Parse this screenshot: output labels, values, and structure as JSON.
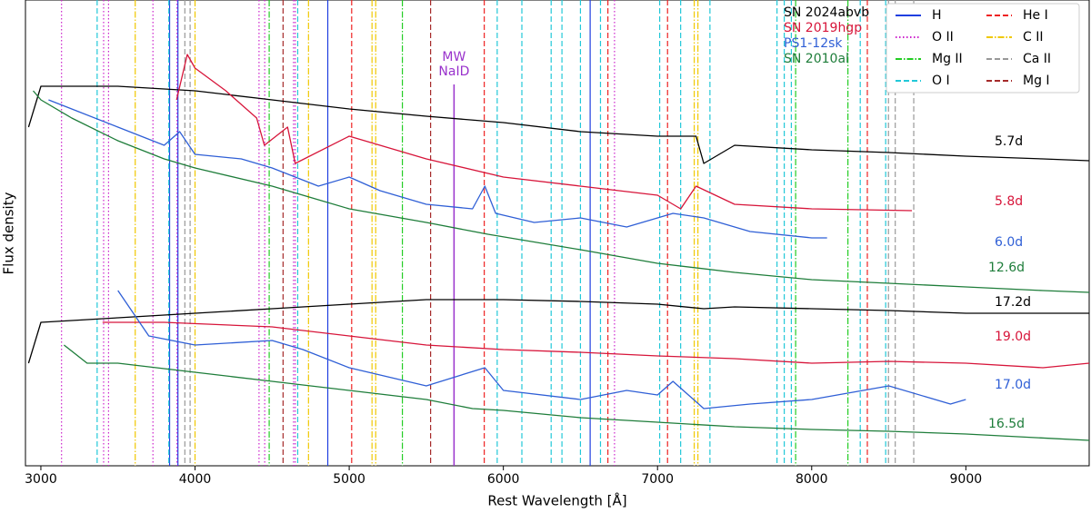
{
  "chart_data": {
    "type": "line",
    "x_label": "Rest Wavelength [Å]",
    "y_label": "Flux density",
    "xlim": [
      2900,
      9800
    ],
    "xticks": [
      3000,
      4000,
      5000,
      6000,
      7000,
      8000,
      9000
    ],
    "ylim": [
      0,
      513
    ],
    "objects": [
      {
        "name": "SN 2024abvb",
        "color": "#000000",
        "spectra": [
          {
            "label": "5.7d",
            "x": [
              2920,
              3000,
              3500,
              4000,
              4500,
              5000,
              5500,
              6000,
              6500,
              7000,
              7250,
              7300,
              7500,
              8000,
              8500,
              9000,
              9500,
              9800
            ],
            "values": [
              373,
              418,
              418,
              413,
              403,
              393,
              385,
              378,
              368,
              363,
              363,
              333,
              353,
              348,
              345,
              341,
              338,
              336
            ]
          },
          {
            "label": "17.2d",
            "x": [
              2920,
              3000,
              3500,
              4000,
              4500,
              5000,
              5500,
              6000,
              6500,
              7000,
              7300,
              7500,
              8000,
              8500,
              9000,
              9500,
              9800
            ],
            "values": [
              113,
              158,
              163,
              168,
              173,
              178,
              183,
              183,
              181,
              178,
              173,
              175,
              173,
              171,
              168,
              168,
              168
            ]
          }
        ]
      },
      {
        "name": "SN 2019hgp",
        "color": "#d7153a",
        "spectra": [
          {
            "label": "5.8d",
            "x": [
              3880,
              3950,
              4000,
              4200,
              4400,
              4450,
              4600,
              4650,
              5000,
              5500,
              6000,
              6500,
              7000,
              7150,
              7250,
              7500,
              8000,
              8650
            ],
            "values": [
              403,
              453,
              438,
              413,
              383,
              353,
              373,
              333,
              363,
              338,
              318,
              308,
              298,
              283,
              308,
              288,
              283,
              281
            ]
          },
          {
            "label": "19.0d",
            "x": [
              3400,
              3800,
              4500,
              5000,
              5500,
              6000,
              6500,
              7000,
              7500,
              8000,
              8500,
              9000,
              9500,
              9800
            ],
            "values": [
              158,
              158,
              153,
              143,
              133,
              128,
              125,
              121,
              118,
              113,
              115,
              113,
              108,
              113
            ]
          }
        ]
      },
      {
        "name": "PS1-12sk",
        "color": "#2f5fd6",
        "spectra": [
          {
            "label": "6.0d",
            "x": [
              3050,
              3200,
              3500,
              3800,
              3900,
              4000,
              4300,
              4500,
              4800,
              5000,
              5200,
              5500,
              5800,
              5880,
              5950,
              6200,
              6500,
              6800,
              7100,
              7300,
              7600,
              8000,
              8100
            ],
            "values": [
              403,
              393,
              373,
              353,
              368,
              343,
              338,
              328,
              308,
              318,
              303,
              288,
              283,
              308,
              278,
              268,
              273,
              263,
              278,
              273,
              258,
              251,
              251
            ]
          },
          {
            "label": "17.0d",
            "x": [
              3500,
              3700,
              4000,
              4500,
              4700,
              5000,
              5500,
              5880,
              6000,
              6500,
              6800,
              7000,
              7100,
              7300,
              7600,
              8000,
              8500,
              8900,
              9000
            ],
            "values": [
              193,
              143,
              133,
              138,
              128,
              108,
              88,
              108,
              83,
              73,
              83,
              78,
              93,
              63,
              68,
              73,
              88,
              68,
              73
            ]
          }
        ]
      },
      {
        "name": "SN 2010al",
        "color": "#1e7d3a",
        "spectra": [
          {
            "label": "12.6d",
            "x": [
              2950,
              3000,
              3200,
              3500,
              3800,
              4000,
              4500,
              4800,
              5000,
              5500,
              5900,
              6500,
              7000,
              7500,
              8000,
              8500,
              9000,
              9500,
              9800
            ],
            "values": [
              413,
              403,
              383,
              358,
              338,
              328,
              308,
              293,
              283,
              268,
              255,
              238,
              223,
              213,
              205,
              201,
              197,
              193,
              191
            ]
          },
          {
            "label": "16.5d",
            "x": [
              3150,
              3300,
              3500,
              4000,
              4500,
              5000,
              5500,
              5800,
              6000,
              6500,
              7000,
              7500,
              8000,
              8500,
              9000,
              9800
            ],
            "values": [
              133,
              113,
              113,
              103,
              93,
              83,
              73,
              63,
              61,
              53,
              48,
              43,
              40,
              38,
              35,
              28
            ]
          }
        ]
      }
    ],
    "line_ids": [
      {
        "name": "H",
        "color": "#1f3fe0",
        "style": "solid",
        "wavelengths": [
          3835,
          3889,
          4861,
          6563
        ]
      },
      {
        "name": "He I",
        "color": "#ee2222",
        "style": "dashed",
        "wavelengths": [
          5016,
          5876,
          6678,
          7065,
          8361
        ]
      },
      {
        "name": "O II",
        "color": "#cc22cc",
        "style": "dotted",
        "wavelengths": [
          3134,
          3407,
          3439,
          3727,
          3883,
          4415,
          4452,
          4639,
          4650,
          6721
        ]
      },
      {
        "name": "C II",
        "color": "#f0c800",
        "style": "dashdot",
        "wavelengths": [
          3612,
          4000,
          4736,
          5148,
          5172,
          7238,
          7262
        ]
      },
      {
        "name": "Mg II",
        "color": "#22cc22",
        "style": "dashdot",
        "wavelengths": [
          4481,
          5345,
          7896,
          8235
        ]
      },
      {
        "name": "Ca II",
        "color": "#999999",
        "style": "dashed",
        "wavelengths": [
          3934,
          3968,
          8498,
          8542,
          8662
        ]
      },
      {
        "name": "O I",
        "color": "#22c8d8",
        "style": "dashed",
        "wavelengths": [
          3365,
          3830,
          4666,
          5960,
          6120,
          6310,
          6380,
          6500,
          6630,
          7014,
          7150,
          7340,
          7775,
          7822,
          7868,
          8315,
          8480
        ]
      },
      {
        "name": "Mg I",
        "color": "#a52a2a",
        "style": "dashed",
        "wavelengths": [
          4571,
          5528
        ]
      }
    ],
    "milky_way": {
      "labels": [
        "MW",
        "NaID"
      ],
      "wavelength": 5680,
      "color": "#9932cc"
    }
  }
}
